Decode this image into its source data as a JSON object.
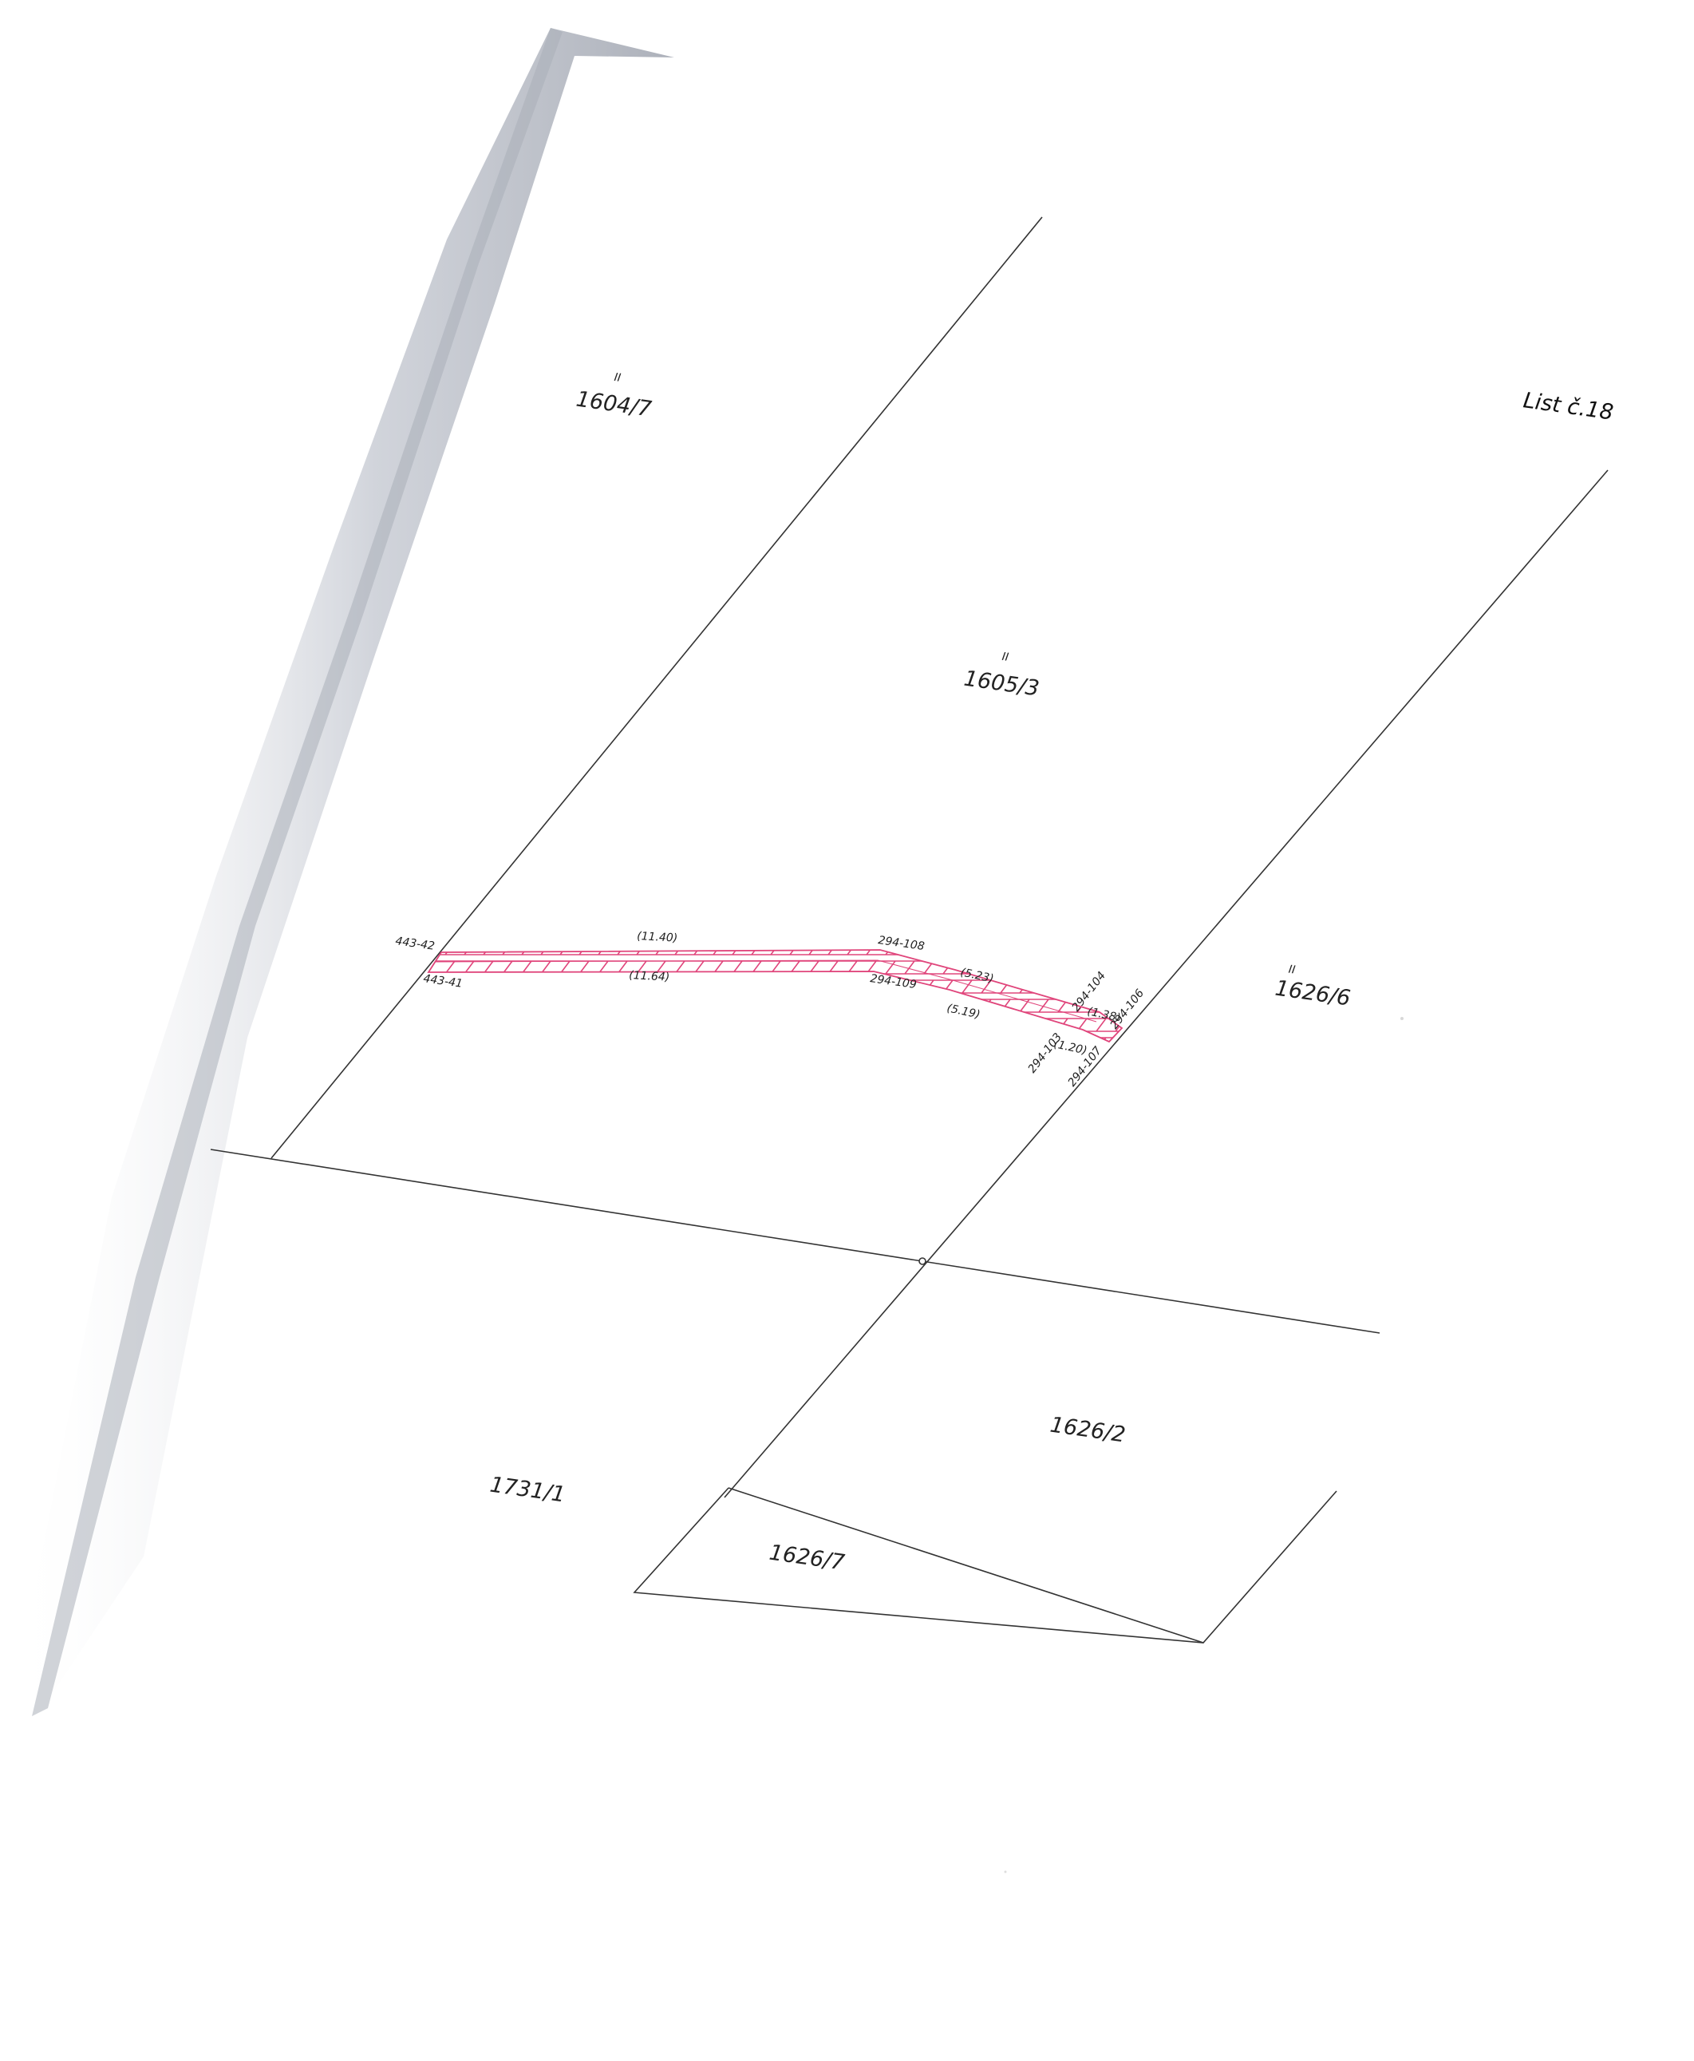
{
  "sheet": {
    "title": "List č.18"
  },
  "parcels": {
    "p1604_7": {
      "mark": "II",
      "number": "1604/7"
    },
    "p1605_3": {
      "mark": "II",
      "number": "1605/3"
    },
    "p1626_6": {
      "mark": "II",
      "number": "1626/6"
    },
    "p1626_2": {
      "number": "1626/2"
    },
    "p1731_1": {
      "number": "1731/1"
    },
    "p1626_7": {
      "number": "1626/7"
    }
  },
  "points": {
    "p443_42": "443-42",
    "p443_41": "443-41",
    "p294_108": "294-108",
    "p294_109": "294-109",
    "p294_104": "294-104",
    "p294_106": "294-106",
    "p294_103": "294-103",
    "p294_107": "294-107"
  },
  "measurements": {
    "m11_40": "(11.40)",
    "m11_64": "(11.64)",
    "m5_23": "(5.23)",
    "m5_19": "(5.19)",
    "m1_38": "(1.38)",
    "m1_20": "(1.20)"
  },
  "colors": {
    "boundary_line": "#333333",
    "easement_hatch": "#e0457b",
    "scan_shadow": "#b8bcc6"
  }
}
